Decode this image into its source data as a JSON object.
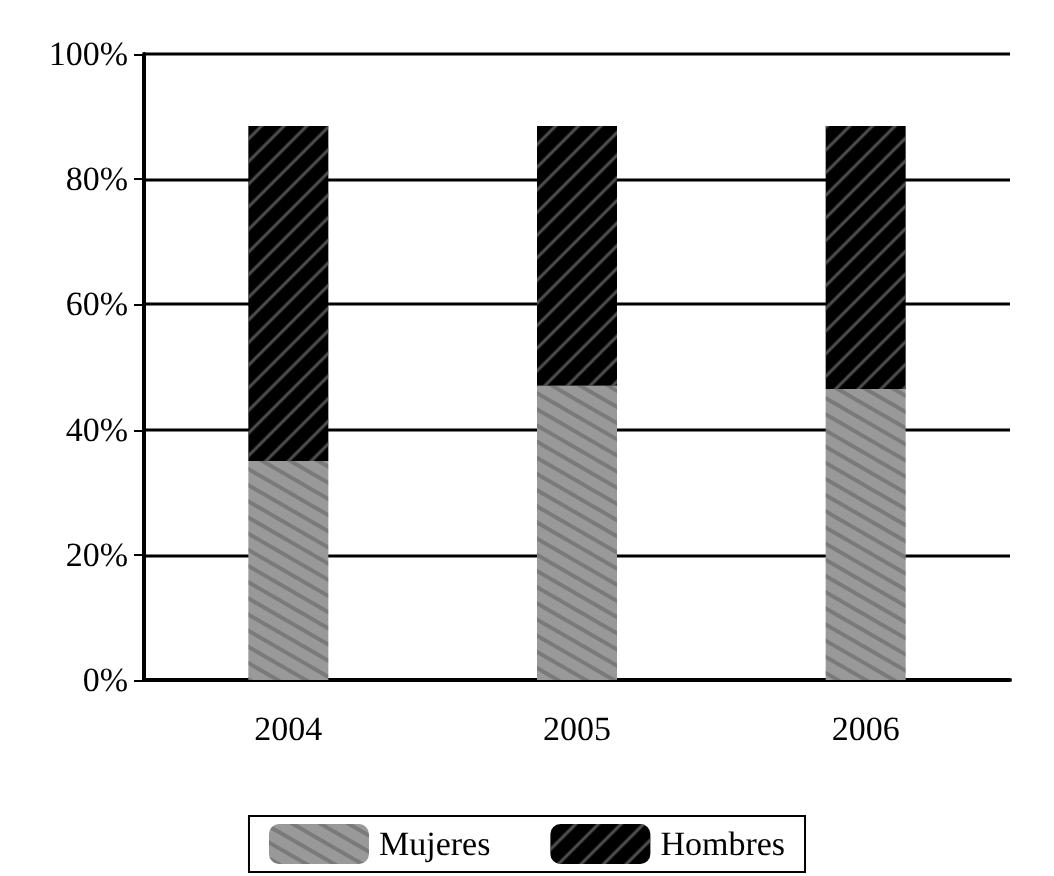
{
  "chart_data": {
    "type": "bar",
    "stacked": true,
    "categories": [
      "2004",
      "2005",
      "2006"
    ],
    "series": [
      {
        "name": "Mujeres",
        "color": "#999999",
        "values": [
          35,
          47,
          46.5
        ]
      },
      {
        "name": "Hombres",
        "color": "#000000",
        "values": [
          53.5,
          41.5,
          42
        ]
      }
    ],
    "ylim": [
      0,
      100
    ],
    "yticks": [
      {
        "value": 0,
        "label": "0%"
      },
      {
        "value": 20,
        "label": "20%"
      },
      {
        "value": 40,
        "label": "40%"
      },
      {
        "value": 60,
        "label": "60%"
      },
      {
        "value": 80,
        "label": "80%"
      },
      {
        "value": 100,
        "label": "100%"
      }
    ],
    "grid": "y",
    "legend": "bottom"
  }
}
